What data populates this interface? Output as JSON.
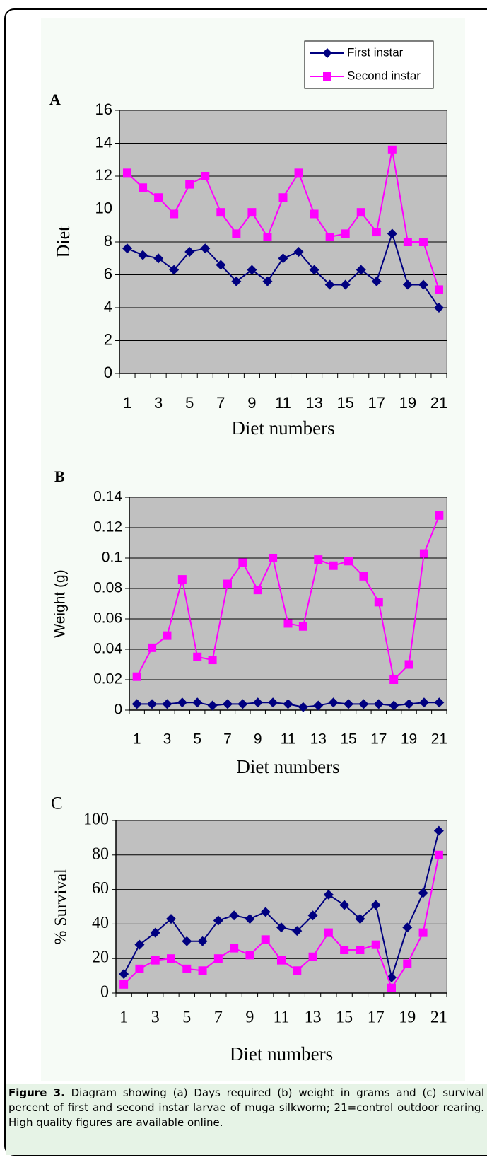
{
  "chart_data": [
    {
      "type": "line",
      "panel_label": "A",
      "ylabel": "Diet",
      "xlabel": "Diet numbers",
      "categories": [
        1,
        null,
        3,
        null,
        5,
        null,
        7,
        null,
        9,
        null,
        11,
        null,
        13,
        null,
        15,
        null,
        17,
        null,
        19,
        null,
        21
      ],
      "ylim": [
        0,
        16
      ],
      "yticks": [
        0,
        2,
        4,
        6,
        8,
        10,
        12,
        14,
        16
      ],
      "grid": true,
      "legend": "top-right",
      "series": [
        {
          "name": "First instar",
          "color": "#000080",
          "marker": "diamond",
          "values": [
            7.6,
            7.2,
            7.0,
            6.3,
            7.4,
            7.6,
            6.6,
            5.6,
            6.3,
            5.6,
            7.0,
            7.4,
            6.3,
            5.4,
            5.4,
            6.3,
            5.6,
            8.5,
            5.4,
            5.4,
            4.0
          ]
        },
        {
          "name": "Second instar",
          "color": "#ff00ff",
          "marker": "square",
          "values": [
            12.2,
            11.3,
            10.7,
            9.7,
            11.5,
            12.0,
            9.8,
            8.5,
            9.8,
            8.3,
            10.7,
            12.2,
            9.7,
            8.3,
            8.5,
            9.8,
            8.6,
            13.6,
            8.0,
            8.0,
            5.1
          ]
        }
      ]
    },
    {
      "type": "line",
      "panel_label": "B",
      "ylabel": "Weight (g)",
      "xlabel": "Diet numbers",
      "categories": [
        1,
        null,
        3,
        null,
        5,
        null,
        7,
        null,
        9,
        null,
        11,
        null,
        13,
        null,
        15,
        null,
        17,
        null,
        19,
        null,
        21
      ],
      "ylim": [
        0,
        0.14
      ],
      "yticks": [
        0,
        0.02,
        0.04,
        0.06,
        0.08,
        0.1,
        0.12,
        0.14
      ],
      "grid": true,
      "series": [
        {
          "color": "#000080",
          "marker": "diamond",
          "values": [
            0.004,
            0.004,
            0.004,
            0.005,
            0.005,
            0.003,
            0.004,
            0.004,
            0.005,
            0.005,
            0.004,
            0.002,
            0.003,
            0.005,
            0.004,
            0.004,
            0.004,
            0.003,
            0.004,
            0.005,
            0.005
          ]
        },
        {
          "color": "#ff00ff",
          "marker": "square",
          "values": [
            0.022,
            0.041,
            0.049,
            0.086,
            0.035,
            0.033,
            0.083,
            0.097,
            0.079,
            0.1,
            0.057,
            0.055,
            0.099,
            0.095,
            0.098,
            0.088,
            0.071,
            0.02,
            0.03,
            0.103,
            0.128
          ]
        }
      ]
    },
    {
      "type": "line",
      "panel_label": "C",
      "ylabel": "% Survival",
      "xlabel": "Diet numbers",
      "categories": [
        1,
        null,
        3,
        null,
        5,
        null,
        7,
        null,
        9,
        null,
        11,
        null,
        13,
        null,
        15,
        null,
        17,
        null,
        19,
        null,
        21
      ],
      "ylim": [
        0,
        100
      ],
      "yticks": [
        0,
        20,
        40,
        60,
        80,
        100
      ],
      "grid": true,
      "series": [
        {
          "color": "#000080",
          "marker": "diamond",
          "values": [
            11,
            28,
            35,
            43,
            30,
            30,
            42,
            45,
            43,
            47,
            38,
            36,
            45,
            57,
            51,
            43,
            51,
            9,
            38,
            58,
            94
          ]
        },
        {
          "color": "#ff00ff",
          "marker": "square",
          "values": [
            5,
            14,
            19,
            20,
            14,
            13,
            20,
            26,
            22,
            31,
            19,
            13,
            21,
            35,
            25,
            25,
            28,
            3,
            17,
            35,
            80
          ]
        }
      ]
    }
  ],
  "caption": {
    "label": "Figure 3.",
    "text": "Diagram showing (a) Days required (b) weight in grams and (c) survival percent of first and second instar larvae of muga silkworm; 21=control outdoor rearing. High quality figures are available online."
  }
}
